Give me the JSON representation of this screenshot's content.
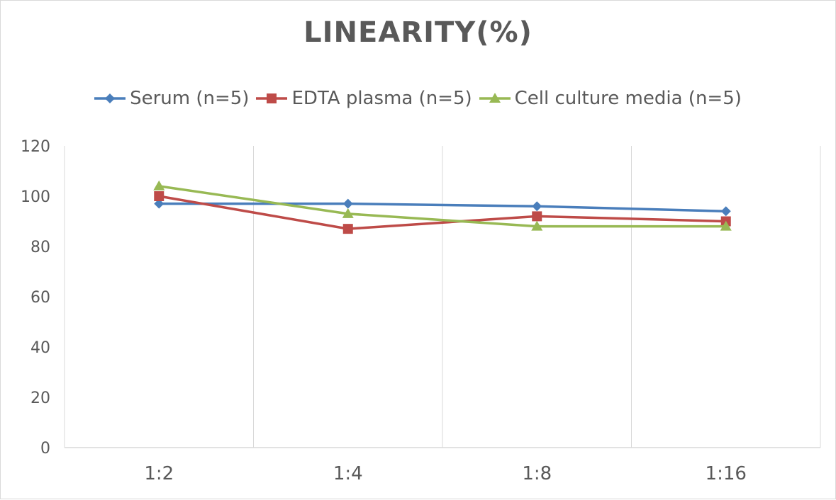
{
  "chart_data": {
    "type": "line",
    "title": "LINEARITY(%)",
    "categories": [
      "1:2",
      "1:4",
      "1:8",
      "1:16"
    ],
    "series": [
      {
        "name": "Serum (n=5)",
        "values": [
          97,
          97,
          96,
          94
        ],
        "color": "#4a7ebb",
        "marker": "diamond"
      },
      {
        "name": "EDTA plasma (n=5)",
        "values": [
          100,
          87,
          92,
          90
        ],
        "color": "#be4b48",
        "marker": "square"
      },
      {
        "name": "Cell culture media (n=5)",
        "values": [
          104,
          93,
          88,
          88
        ],
        "color": "#98b954",
        "marker": "triangle"
      }
    ],
    "ylim": [
      0,
      120
    ],
    "yticks": [
      0,
      20,
      40,
      60,
      80,
      100,
      120
    ],
    "grid": "vertical",
    "legend": "top"
  }
}
